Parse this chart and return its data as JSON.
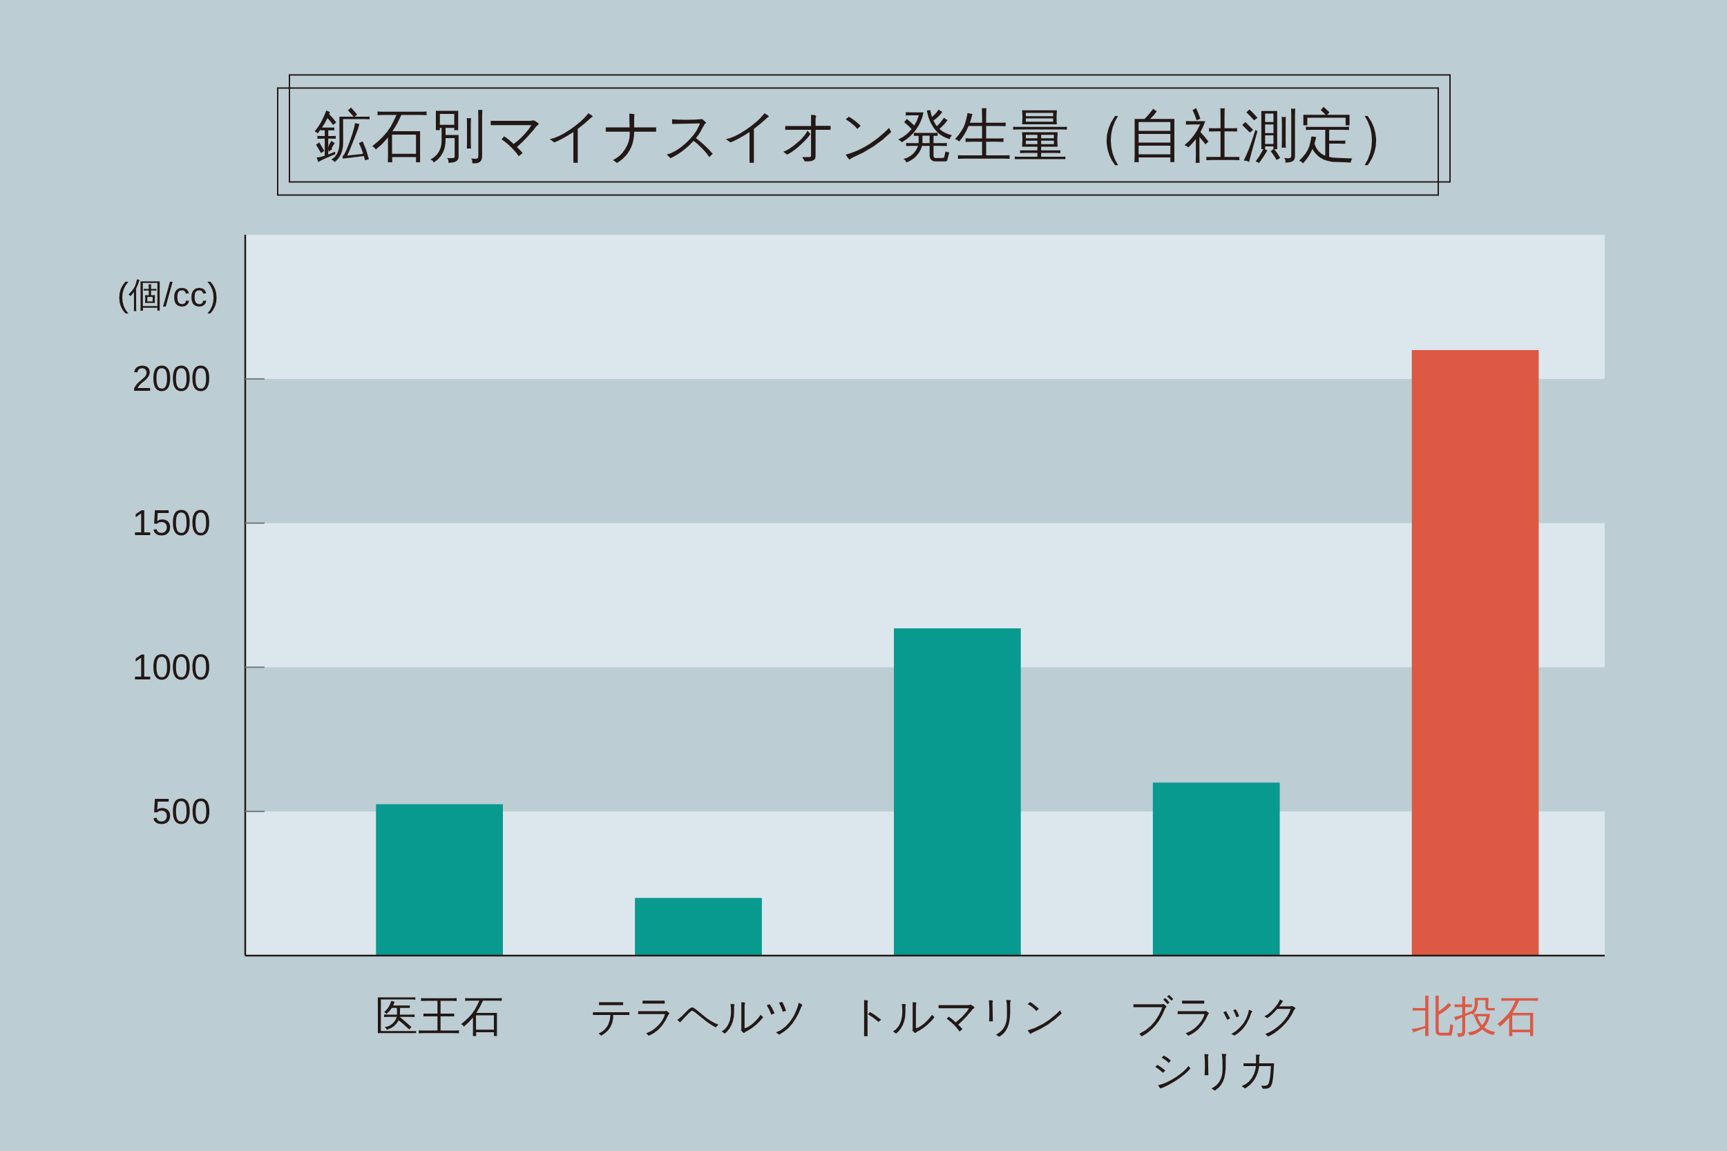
{
  "chart_data": {
    "type": "bar",
    "title": "鉱石別マイナスイオン発生量（自社測定）",
    "ylabel": "(個/cc)",
    "categories": [
      "医王石",
      "テラヘルツ",
      "トルマリン",
      "ブラックシリカ",
      "北投石"
    ],
    "values": [
      525,
      200,
      1135,
      600,
      2100
    ],
    "colors": [
      "#089a8f",
      "#089a8f",
      "#089a8f",
      "#089a8f",
      "#dc5944"
    ],
    "ylim": [
      0,
      2500
    ],
    "yticks": [
      500,
      1000,
      1500,
      2000
    ],
    "bands": [
      {
        "axis": "y",
        "from": 500,
        "to": 1000,
        "color": "#bccdd4"
      },
      {
        "axis": "y",
        "from": 1500,
        "to": 2000,
        "color": "#bccdd4"
      }
    ]
  }
}
